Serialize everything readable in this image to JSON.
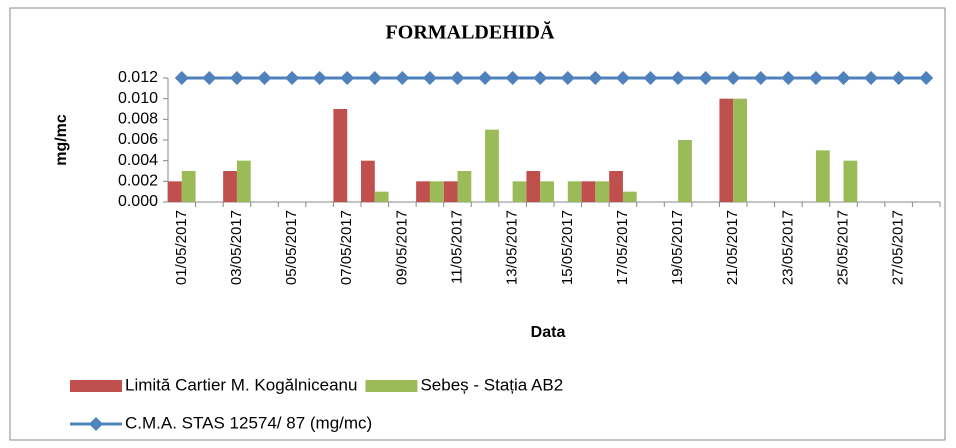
{
  "chart_data": {
    "type": "bar",
    "title": "FORMALDEHIDĂ",
    "y_label": "mg/mc",
    "x_label": "Data",
    "categories": [
      "01/05/2017",
      null,
      "03/05/2017",
      null,
      "05/05/2017",
      null,
      "07/05/2017",
      null,
      "09/05/2017",
      null,
      "11/05/2017",
      null,
      "13/05/2017",
      null,
      "15/05/2017",
      null,
      "17/05/2017",
      null,
      "19/05/2017",
      null,
      "21/05/2017",
      null,
      "23/05/2017",
      null,
      "25/05/2017",
      null,
      "27/05/2017",
      null
    ],
    "series": [
      {
        "name": "Limită Cartier M. Kogălniceanu",
        "type": "bar",
        "color": "#c0504d",
        "values": [
          0.002,
          null,
          0.003,
          null,
          null,
          null,
          0.009,
          0.004,
          null,
          0.002,
          0.002,
          null,
          null,
          0.003,
          null,
          0.002,
          0.003,
          null,
          null,
          null,
          0.01,
          null,
          null,
          null,
          null,
          null,
          null,
          null
        ]
      },
      {
        "name": "Sebeș - Stația AB2",
        "type": "bar",
        "color": "#9bbb59",
        "values": [
          0.003,
          null,
          0.004,
          null,
          null,
          null,
          null,
          0.001,
          null,
          0.002,
          0.003,
          0.007,
          0.002,
          0.002,
          0.002,
          0.002,
          0.001,
          null,
          0.006,
          null,
          0.01,
          null,
          null,
          0.005,
          0.004,
          null,
          null,
          null
        ]
      },
      {
        "name": "C.M.A. STAS 12574/ 87 (mg/mc)",
        "type": "line",
        "color": "#4f81bd",
        "values": [
          0.012,
          0.012,
          0.012,
          0.012,
          0.012,
          0.012,
          0.012,
          0.012,
          0.012,
          0.012,
          0.012,
          0.012,
          0.012,
          0.012,
          0.012,
          0.012,
          0.012,
          0.012,
          0.012,
          0.012,
          0.012,
          0.012,
          0.012,
          0.012,
          0.012,
          0.012,
          0.012,
          0.012
        ]
      }
    ],
    "ylim": [
      0,
      0.012
    ],
    "yticks": [
      {
        "value": 0,
        "label": "0.000"
      },
      0.002,
      0.004,
      0.006,
      0.008,
      {
        "value": 0.01,
        "label": "0.010"
      },
      0.012
    ],
    "grid": false
  }
}
